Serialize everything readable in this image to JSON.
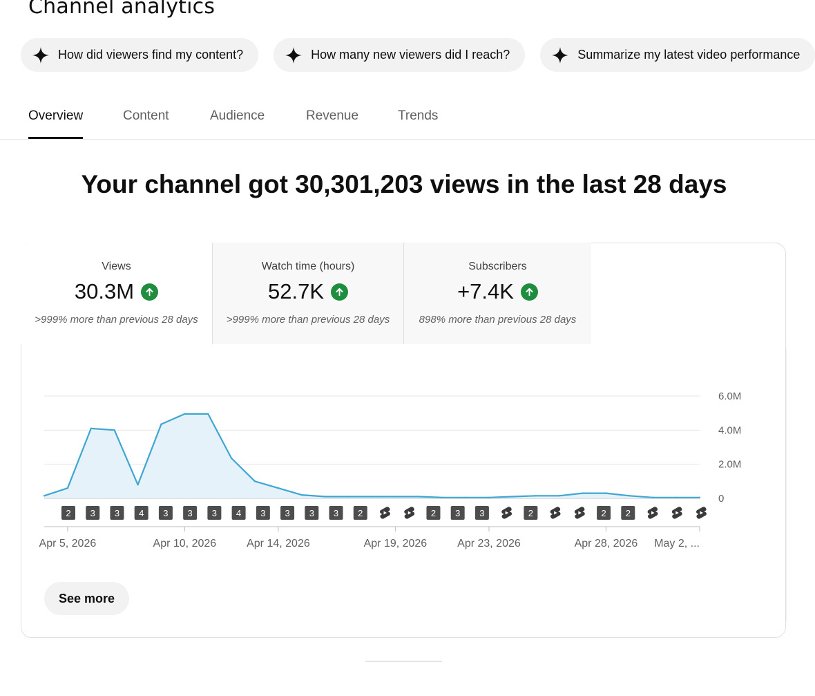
{
  "page_title": "Channel analytics",
  "chips": [
    {
      "label": "How did viewers find my content?"
    },
    {
      "label": "How many new viewers did I reach?"
    },
    {
      "label": "Summarize my latest video performance"
    }
  ],
  "tabs": [
    {
      "label": "Overview",
      "active": true
    },
    {
      "label": "Content",
      "active": false
    },
    {
      "label": "Audience",
      "active": false
    },
    {
      "label": "Revenue",
      "active": false
    },
    {
      "label": "Trends",
      "active": false
    }
  ],
  "headline": "Your channel got 30,301,203 views in the last 28 days",
  "metrics": [
    {
      "label": "Views",
      "value": "30.3M",
      "note": ">999% more than previous 28 days",
      "trend": "up"
    },
    {
      "label": "Watch time (hours)",
      "value": "52.7K",
      "note": ">999% more than previous 28 days",
      "trend": "up"
    },
    {
      "label": "Subscribers",
      "value": "+7.4K",
      "note": "898% more than previous 28 days",
      "trend": "up"
    }
  ],
  "colors": {
    "line": "#3ea6d1",
    "fill": "#e6f2fa",
    "up": "#1e8e3e",
    "marker": "#4d4d4d"
  },
  "chart_data": {
    "type": "area",
    "ylim": [
      0,
      6000000
    ],
    "y_ticks": [
      {
        "value": 0,
        "label": "0"
      },
      {
        "value": 2000000,
        "label": "2.0M"
      },
      {
        "value": 4000000,
        "label": "4.0M"
      },
      {
        "value": 6000000,
        "label": "6.0M"
      }
    ],
    "x": [
      "2026-04-04",
      "2026-04-05",
      "2026-04-06",
      "2026-04-07",
      "2026-04-08",
      "2026-04-09",
      "2026-04-10",
      "2026-04-11",
      "2026-04-12",
      "2026-04-13",
      "2026-04-14",
      "2026-04-15",
      "2026-04-16",
      "2026-04-17",
      "2026-04-18",
      "2026-04-19",
      "2026-04-20",
      "2026-04-21",
      "2026-04-22",
      "2026-04-23",
      "2026-04-24",
      "2026-04-25",
      "2026-04-26",
      "2026-04-27",
      "2026-04-28",
      "2026-04-29",
      "2026-04-30",
      "2026-05-01",
      "2026-05-02"
    ],
    "values": [
      150000,
      600000,
      4100000,
      4000000,
      800000,
      4350000,
      4950000,
      4950000,
      2350000,
      1000000,
      600000,
      200000,
      100000,
      100000,
      100000,
      100000,
      100000,
      50000,
      50000,
      50000,
      100000,
      150000,
      150000,
      300000,
      300000,
      150000,
      50000,
      50000,
      50000
    ],
    "x_tick_labels": [
      {
        "index": 1,
        "label": "Apr 5, 2026"
      },
      {
        "index": 6,
        "label": "Apr 10, 2026"
      },
      {
        "index": 10,
        "label": "Apr 14, 2026"
      },
      {
        "index": 15,
        "label": "Apr 19, 2026"
      },
      {
        "index": 19,
        "label": "Apr 23, 2026"
      },
      {
        "index": 24,
        "label": "Apr 28, 2026"
      },
      {
        "index": 28,
        "label": "May 2, ..."
      }
    ],
    "markers": [
      "2",
      "3",
      "3",
      "4",
      "3",
      "3",
      "3",
      "4",
      "3",
      "3",
      "3",
      "3",
      "2",
      "S",
      "S",
      "2",
      "3",
      "3",
      "S",
      "2",
      "S",
      "S",
      "2",
      "2",
      "S",
      "S",
      "S"
    ]
  },
  "see_more_label": "See more"
}
